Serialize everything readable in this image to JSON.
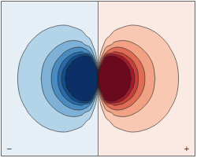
{
  "chart_data": {
    "type": "contour",
    "x": [
      -1.2,
      -1.1,
      -1.0,
      -0.9,
      -0.8,
      -0.7,
      -0.6,
      -0.5,
      -0.4,
      -0.3,
      -0.2,
      -0.1,
      0,
      0.1,
      0.2,
      0.3,
      0.4,
      0.5,
      0.6,
      0.7,
      0.8,
      0.9,
      1.0,
      1.1,
      1.2
    ],
    "y": [
      -0.9,
      -0.8,
      -0.7,
      -0.6,
      -0.5,
      -0.4,
      -0.3,
      -0.2,
      -0.1,
      0,
      0.1,
      0.2,
      0.3,
      0.4,
      0.5,
      0.6,
      0.7,
      0.8,
      0.9
    ],
    "z": [
      [
        -0.356,
        -0.383,
        -0.411,
        -0.436,
        -0.458,
        -0.472,
        -0.474,
        -0.458,
        -0.419,
        -0.351,
        -0.255,
        -0.135,
        0,
        0.135,
        0.255,
        0.351,
        0.419,
        0.458,
        0.474,
        0.472,
        0.458,
        0.436,
        0.411,
        0.383,
        0.356
      ],
      [
        -0.4,
        -0.437,
        -0.476,
        -0.515,
        -0.552,
        -0.583,
        -0.6,
        -0.596,
        -0.559,
        -0.481,
        -0.357,
        -0.191,
        0,
        0.191,
        0.357,
        0.481,
        0.559,
        0.596,
        0.6,
        0.583,
        0.552,
        0.515,
        0.476,
        0.437,
        0.4
      ],
      [
        -0.448,
        -0.496,
        -0.55,
        -0.607,
        -0.666,
        -0.722,
        -0.766,
        -0.785,
        -0.763,
        -0.679,
        -0.518,
        -0.283,
        0,
        0.283,
        0.518,
        0.679,
        0.763,
        0.785,
        0.766,
        0.722,
        0.666,
        0.607,
        0.55,
        0.496,
        0.448
      ],
      [
        -0.497,
        -0.559,
        -0.631,
        -0.711,
        -0.8,
        -0.893,
        -0.982,
        -1.05,
        -1.07,
        -0.994,
        -0.791,
        -0.444,
        0,
        0.444,
        0.791,
        0.994,
        1.07,
        1.05,
        0.982,
        0.893,
        0.8,
        0.711,
        0.631,
        0.559,
        0.497
      ],
      [
        -0.546,
        -0.624,
        -0.716,
        -0.825,
        -0.953,
        -1.1,
        -1.26,
        -1.41,
        -1.52,
        -1.51,
        -1.28,
        -0.754,
        0,
        0.754,
        1.28,
        1.51,
        1.52,
        1.41,
        1.26,
        1.1,
        0.953,
        0.825,
        0.716,
        0.624,
        0.546
      ],
      [
        -0.593,
        -0.686,
        -0.8,
        -0.942,
        -1.12,
        -1.34,
        -1.6,
        -1.9,
        -2.21,
        -2.4,
        -2.24,
        -1.43,
        0,
        1.43,
        2.24,
        2.4,
        2.21,
        1.9,
        1.6,
        1.34,
        1.12,
        0.942,
        0.8,
        0.686,
        0.593
      ],
      [
        -0.634,
        -0.742,
        -0.879,
        -1.05,
        -1.28,
        -1.58,
        -1.99,
        -2.52,
        -3.2,
        -3.93,
        -4.27,
        -3.16,
        0,
        3.16,
        4.27,
        3.93,
        3.2,
        2.52,
        1.99,
        1.58,
        1.28,
        1.05,
        0.879,
        0.742,
        0.634
      ],
      [
        -0.666,
        -0.787,
        -0.943,
        -1.15,
        -1.43,
        -1.81,
        -2.37,
        -3.2,
        -4.47,
        -6.4,
        -8.84,
        -8.94,
        0,
        8.94,
        8.84,
        6.4,
        4.47,
        3.2,
        2.37,
        1.81,
        1.43,
        1.15,
        0.943,
        0.787,
        0.666
      ],
      [
        -0.687,
        -0.816,
        -0.985,
        -1.21,
        -1.53,
        -1.98,
        -2.67,
        -3.77,
        -5.71,
        -9.49,
        -17.89,
        -35.36,
        0,
        35.36,
        17.89,
        9.49,
        5.71,
        3.77,
        2.67,
        1.98,
        1.53,
        1.21,
        0.985,
        0.816,
        0.687
      ],
      [
        -0.69,
        -0.83,
        -1,
        -1.23,
        -1.56,
        -2.04,
        -2.78,
        -4,
        -6.25,
        -11.11,
        -25,
        -100,
        0,
        100,
        25,
        11.11,
        6.25,
        4,
        2.78,
        2.04,
        1.56,
        1.23,
        1,
        0.83,
        0.69
      ],
      [
        -0.687,
        -0.816,
        -0.985,
        -1.21,
        -1.53,
        -1.98,
        -2.67,
        -3.77,
        -5.71,
        -9.49,
        -17.89,
        -35.36,
        0,
        35.36,
        17.89,
        9.49,
        5.71,
        3.77,
        2.67,
        1.98,
        1.53,
        1.21,
        0.985,
        0.816,
        0.687
      ],
      [
        -0.666,
        -0.787,
        -0.943,
        -1.15,
        -1.43,
        -1.81,
        -2.37,
        -3.2,
        -4.47,
        -6.4,
        -8.84,
        -8.94,
        0,
        8.94,
        8.84,
        6.4,
        4.47,
        3.2,
        2.37,
        1.81,
        1.43,
        1.15,
        0.943,
        0.787,
        0.666
      ],
      [
        -0.634,
        -0.742,
        -0.879,
        -1.05,
        -1.28,
        -1.58,
        -1.99,
        -2.52,
        -3.2,
        -3.93,
        -4.27,
        -3.16,
        0,
        3.16,
        4.27,
        3.93,
        3.2,
        2.52,
        1.99,
        1.58,
        1.28,
        1.05,
        0.879,
        0.742,
        0.634
      ],
      [
        -0.593,
        -0.686,
        -0.8,
        -0.942,
        -1.12,
        -1.34,
        -1.6,
        -1.9,
        -2.21,
        -2.4,
        -2.24,
        -1.43,
        0,
        1.43,
        2.24,
        2.4,
        2.21,
        1.9,
        1.6,
        1.34,
        1.12,
        0.942,
        0.8,
        0.686,
        0.593
      ],
      [
        -0.546,
        -0.624,
        -0.716,
        -0.825,
        -0.953,
        -1.1,
        -1.26,
        -1.41,
        -1.52,
        -1.51,
        -1.28,
        -0.754,
        0,
        0.754,
        1.28,
        1.51,
        1.52,
        1.41,
        1.26,
        1.1,
        0.953,
        0.825,
        0.716,
        0.624,
        0.546
      ],
      [
        -0.497,
        -0.559,
        -0.631,
        -0.711,
        -0.8,
        -0.893,
        -0.982,
        -1.05,
        -1.07,
        -0.994,
        -0.791,
        -0.444,
        0,
        0.444,
        0.791,
        0.994,
        1.07,
        1.05,
        0.982,
        0.893,
        0.8,
        0.711,
        0.631,
        0.559,
        0.497
      ],
      [
        -0.448,
        -0.496,
        -0.55,
        -0.607,
        -0.666,
        -0.722,
        -0.766,
        -0.785,
        -0.763,
        -0.679,
        -0.518,
        -0.283,
        0,
        0.283,
        0.518,
        0.679,
        0.763,
        0.785,
        0.766,
        0.722,
        0.666,
        0.607,
        0.55,
        0.496,
        0.448
      ],
      [
        -0.4,
        -0.437,
        -0.476,
        -0.515,
        -0.552,
        -0.583,
        -0.6,
        -0.596,
        -0.559,
        -0.481,
        -0.357,
        -0.191,
        0,
        0.191,
        0.357,
        0.481,
        0.559,
        0.596,
        0.6,
        0.583,
        0.552,
        0.515,
        0.476,
        0.437,
        0.4
      ],
      [
        -0.356,
        -0.383,
        -0.411,
        -0.436,
        -0.458,
        -0.472,
        -0.474,
        -0.458,
        -0.419,
        -0.351,
        -0.255,
        -0.135,
        0,
        0.135,
        0.255,
        0.351,
        0.419,
        0.458,
        0.474,
        0.472,
        0.458,
        0.436,
        0.411,
        0.383,
        0.356
      ]
    ],
    "contour_levels": [
      -6,
      -5,
      -4,
      -3,
      -2,
      -1,
      0,
      1,
      2,
      3,
      4,
      5,
      6
    ],
    "xlim": [
      -1.2,
      1.2
    ],
    "ylim": [
      -0.9,
      0.9
    ],
    "tick_labels": false,
    "grid": false,
    "annotations": [
      "−",
      "+"
    ]
  }
}
